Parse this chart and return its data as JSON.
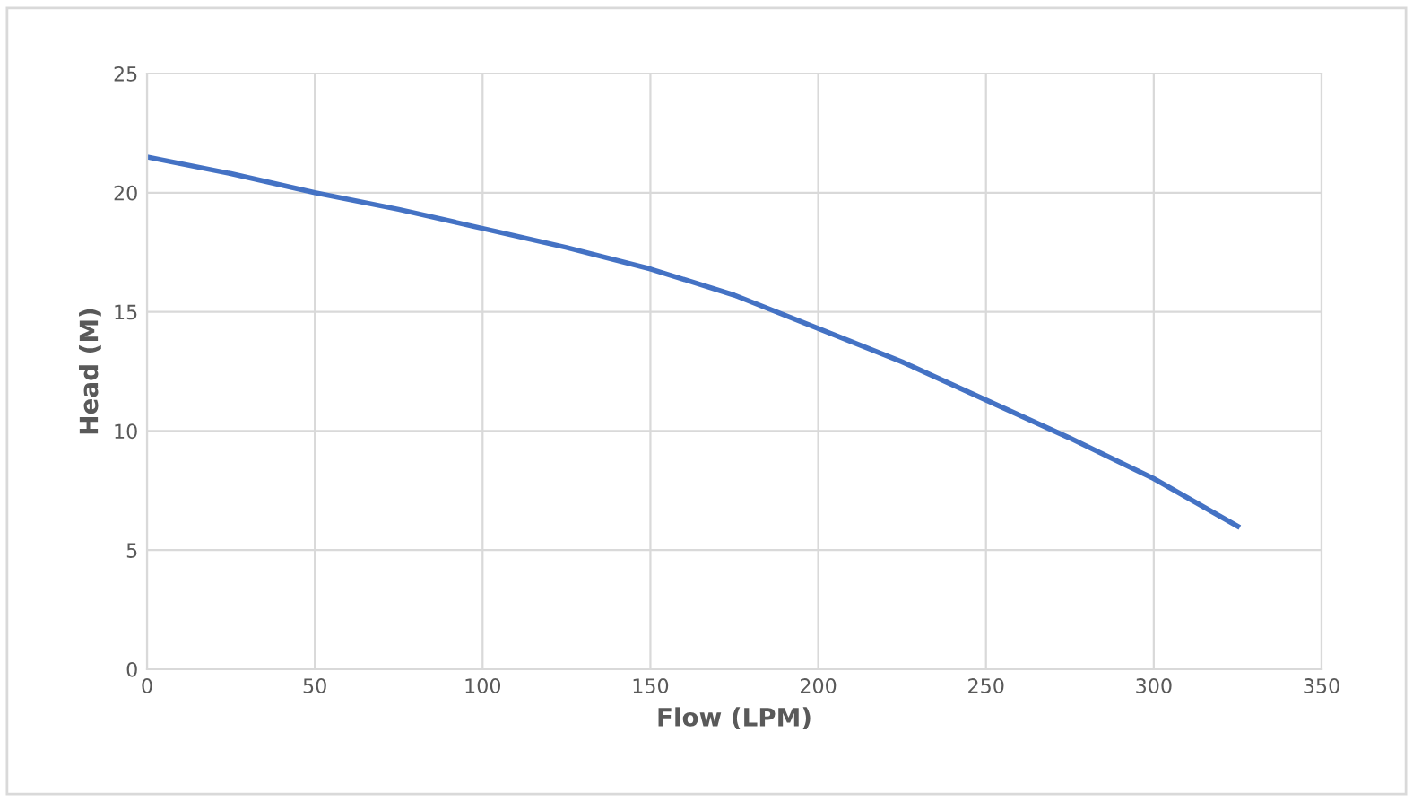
{
  "chart_data": {
    "type": "line",
    "xlabel": "Flow (LPM)",
    "ylabel": "Head (M)",
    "x": [
      0,
      25,
      50,
      75,
      100,
      125,
      150,
      175,
      200,
      225,
      250,
      275,
      300,
      325
    ],
    "series": [
      {
        "color": "#4472c4",
        "values": [
          21.5,
          20.8,
          20.0,
          19.3,
          18.5,
          17.7,
          16.8,
          15.7,
          14.3,
          12.9,
          11.3,
          9.7,
          8.0,
          6.0
        ]
      }
    ],
    "xlim": [
      0,
      350
    ],
    "xticks": [
      0,
      50,
      100,
      150,
      200,
      250,
      300,
      350
    ],
    "ylim": [
      0,
      25
    ],
    "yticks": [
      0,
      5,
      10,
      15,
      20,
      25
    ],
    "grid": true,
    "marker": "none",
    "line_style": "solid"
  }
}
